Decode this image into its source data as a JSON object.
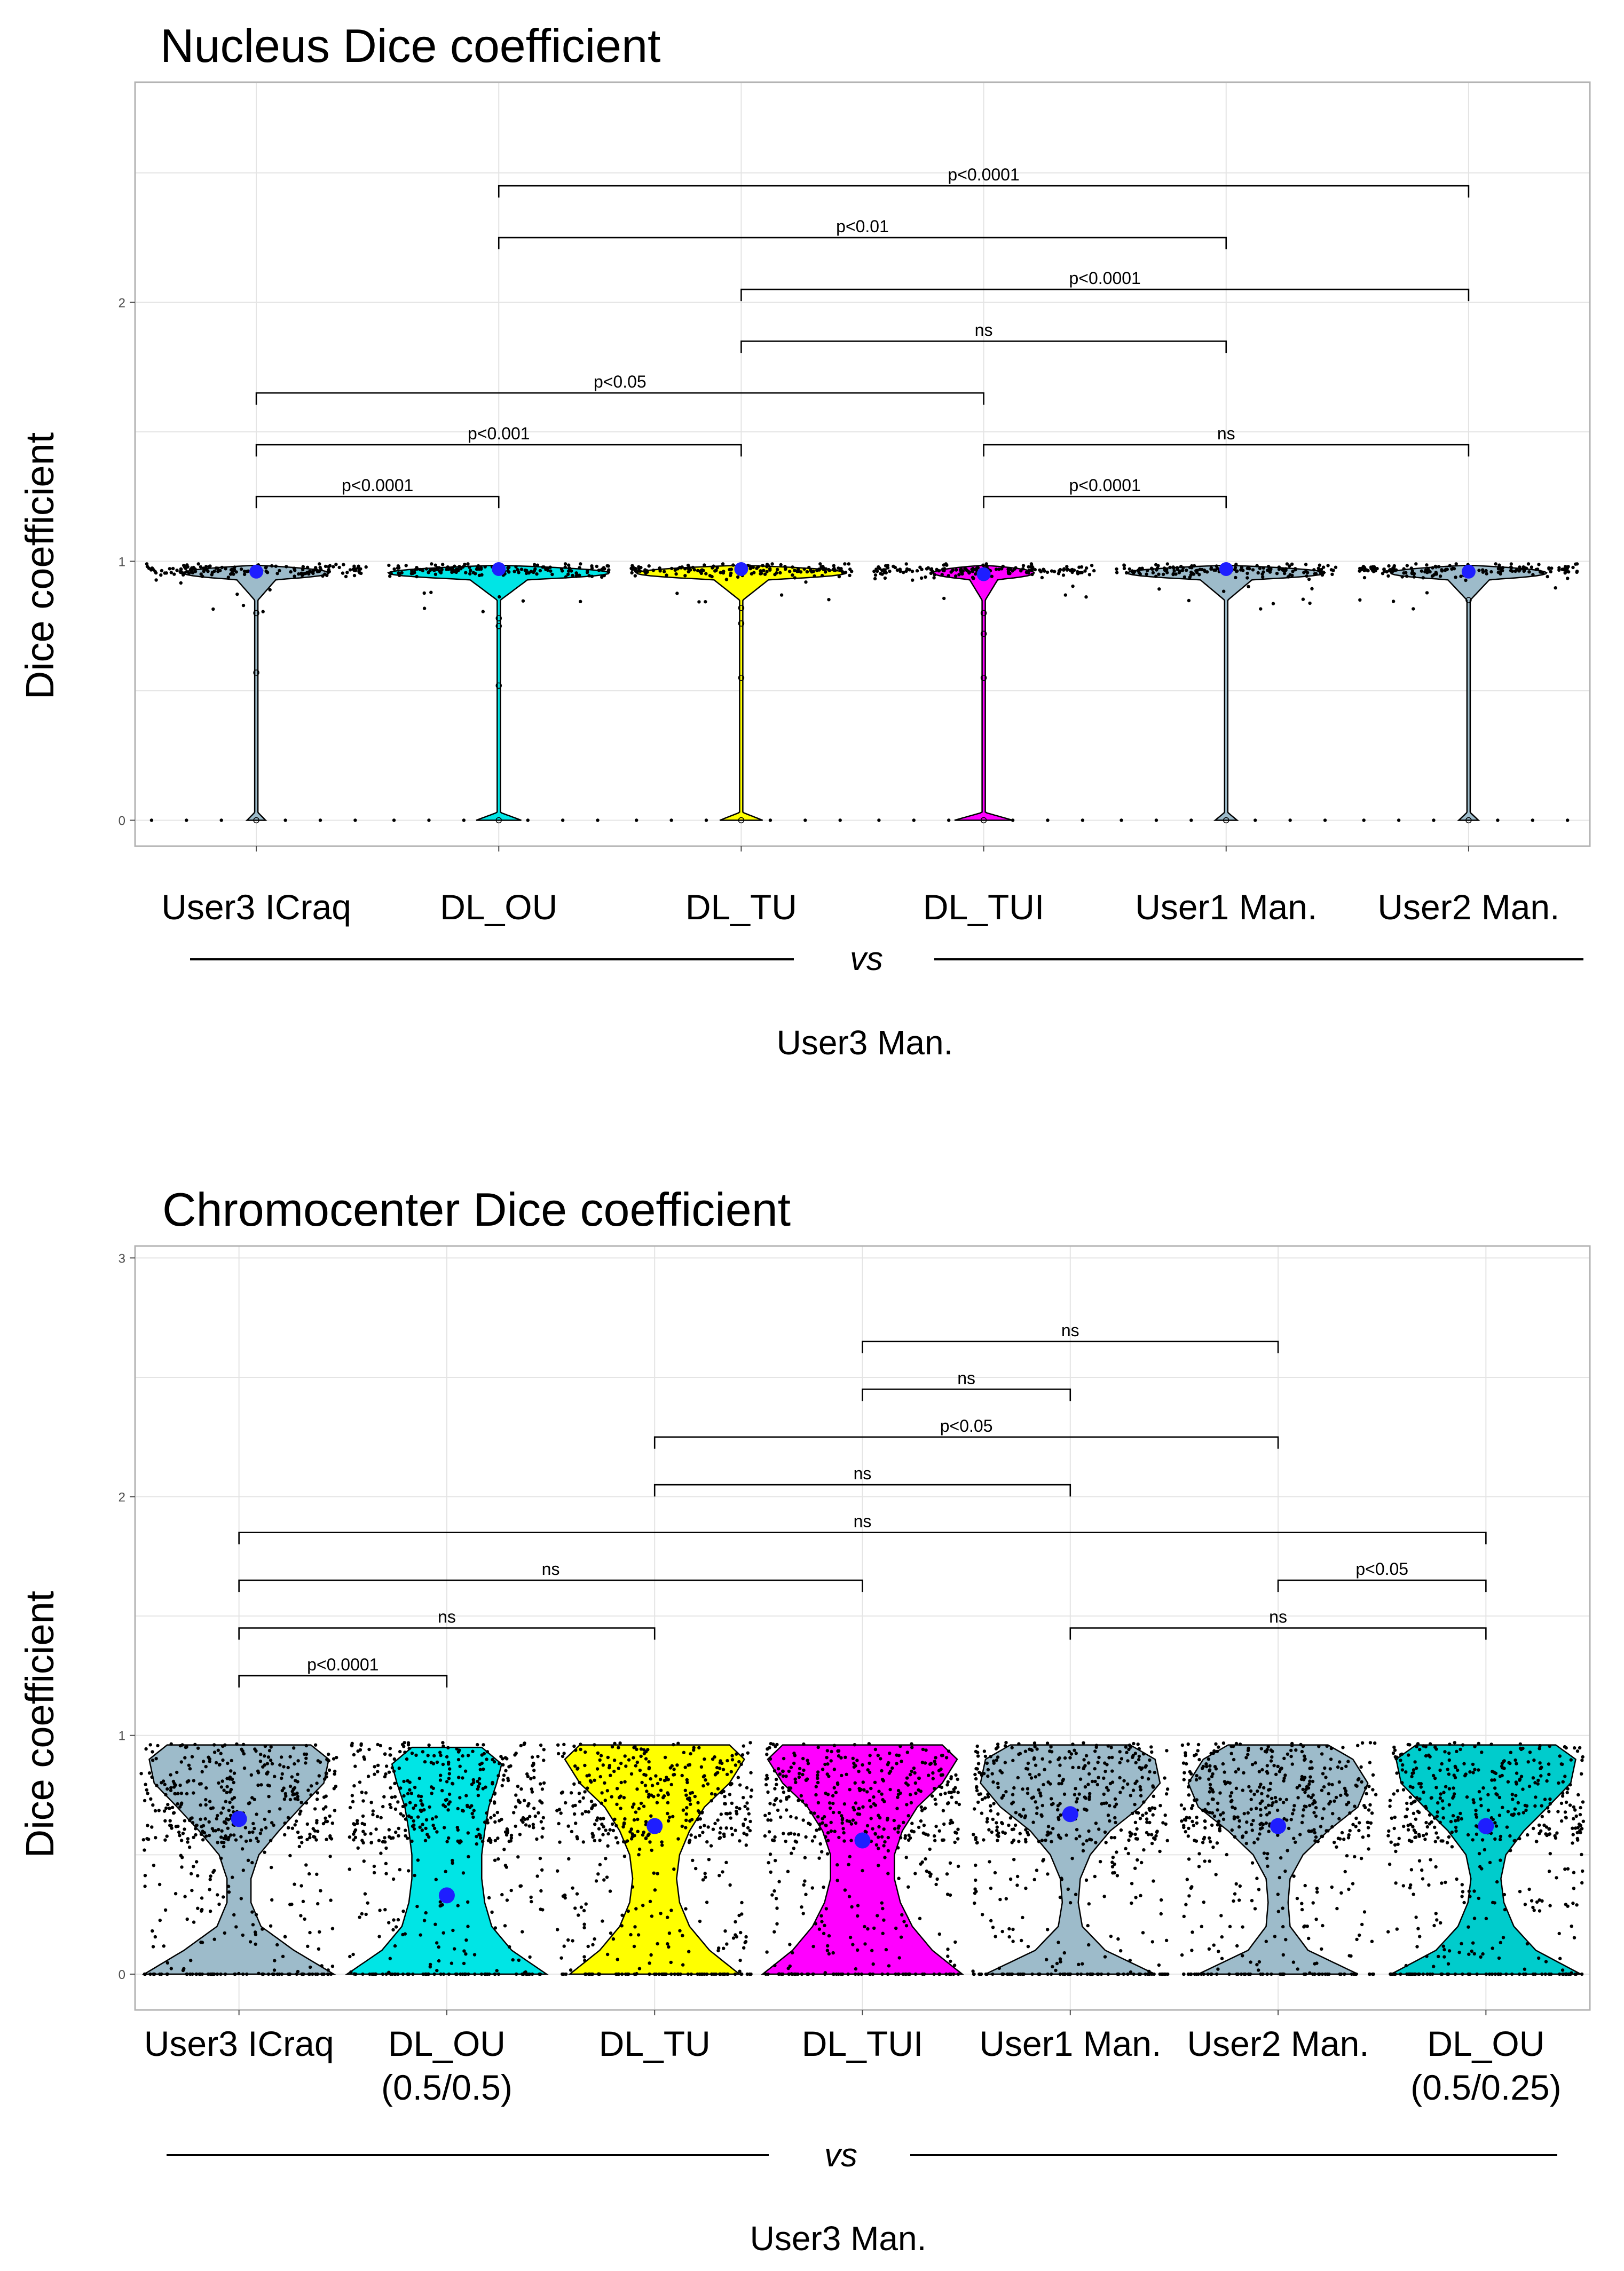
{
  "figure": {
    "reference_label": "User3 Man.",
    "vs_label": "vs"
  },
  "chart_data": [
    {
      "type": "violin",
      "title": "Nucleus Dice coefficient",
      "ylabel": "Dice coefficient",
      "xlabel": "",
      "ylim": [
        -0.1,
        2.85
      ],
      "yticks": [
        0,
        1,
        2
      ],
      "grid": true,
      "categories": [
        {
          "label": "User3 ICraq",
          "color": "#9dbbca",
          "median": 0.96,
          "width_scale": 0.28,
          "core_width": 0.85,
          "low_tail": 0.015,
          "outliers": [
            0.8,
            0.57,
            0.0
          ]
        },
        {
          "label": "DL_OU",
          "color": "#00e5e5",
          "median": 0.97,
          "width_scale": 0.38,
          "core_width": 0.95,
          "low_tail": 0.03,
          "outliers": [
            0.78,
            0.75,
            0.52,
            0.0
          ]
        },
        {
          "label": "DL_TU",
          "color": "#ffff00",
          "median": 0.97,
          "width_scale": 0.36,
          "core_width": 0.95,
          "low_tail": 0.03,
          "outliers": [
            0.82,
            0.76,
            0.55,
            0.0
          ]
        },
        {
          "label": "DL_TUI",
          "color": "#ff00ff",
          "median": 0.95,
          "width_scale": 0.3,
          "core_width": 0.55,
          "low_tail": 0.05,
          "outliers": [
            0.8,
            0.72,
            0.55,
            0.0
          ]
        },
        {
          "label": "User1 Man.",
          "color": "#9dbbca",
          "median": 0.97,
          "width_scale": 0.34,
          "core_width": 0.95,
          "low_tail": 0.015,
          "outliers": [
            0.0
          ]
        },
        {
          "label": "User2 Man.",
          "color": "#9dbbca",
          "median": 0.96,
          "width_scale": 0.3,
          "core_width": 0.85,
          "low_tail": 0.015,
          "outliers": [
            0.85,
            0.0
          ]
        }
      ],
      "comparisons": [
        {
          "from": 0,
          "to": 1,
          "y": 1.25,
          "label": "p<0.0001"
        },
        {
          "from": 0,
          "to": 2,
          "y": 1.45,
          "label": "p<0.001"
        },
        {
          "from": 3,
          "to": 4,
          "y": 1.25,
          "label": "p<0.0001"
        },
        {
          "from": 3,
          "to": 5,
          "y": 1.45,
          "label": "ns"
        },
        {
          "from": 0,
          "to": 3,
          "y": 1.65,
          "label": "p<0.05"
        },
        {
          "from": 2,
          "to": 4,
          "y": 1.85,
          "label": "ns"
        },
        {
          "from": 2,
          "to": 5,
          "y": 2.05,
          "label": "p<0.0001"
        },
        {
          "from": 1,
          "to": 4,
          "y": 2.25,
          "label": "p<0.01"
        },
        {
          "from": 1,
          "to": 5,
          "y": 2.45,
          "label": "p<0.0001"
        }
      ]
    },
    {
      "type": "violin",
      "title": "Chromocenter Dice coefficient",
      "ylabel": "Dice coefficient",
      "xlabel": "",
      "ylim": [
        -0.15,
        3.05
      ],
      "yticks": [
        0,
        1,
        2,
        3
      ],
      "grid": true,
      "categories": [
        {
          "label": "User3 ICraq",
          "sublabel": "",
          "color": "#9dbbca",
          "median": 0.65,
          "profile": [
            [
              0,
              0.95
            ],
            [
              0.1,
              0.55
            ],
            [
              0.2,
              0.22
            ],
            [
              0.3,
              0.12
            ],
            [
              0.4,
              0.12
            ],
            [
              0.5,
              0.2
            ],
            [
              0.6,
              0.4
            ],
            [
              0.7,
              0.62
            ],
            [
              0.8,
              0.85
            ],
            [
              0.9,
              0.9
            ],
            [
              0.96,
              0.72
            ]
          ]
        },
        {
          "label": "DL_OU",
          "sublabel": "(0.5/0.5)",
          "color": "#00e5e5",
          "median": 0.33,
          "profile": [
            [
              0,
              1.0
            ],
            [
              0.1,
              0.65
            ],
            [
              0.2,
              0.45
            ],
            [
              0.3,
              0.38
            ],
            [
              0.4,
              0.35
            ],
            [
              0.5,
              0.35
            ],
            [
              0.6,
              0.38
            ],
            [
              0.7,
              0.42
            ],
            [
              0.8,
              0.5
            ],
            [
              0.88,
              0.55
            ],
            [
              0.95,
              0.35
            ]
          ]
        },
        {
          "label": "DL_TU",
          "sublabel": "",
          "color": "#ffff00",
          "median": 0.62,
          "profile": [
            [
              0,
              0.85
            ],
            [
              0.1,
              0.55
            ],
            [
              0.2,
              0.35
            ],
            [
              0.3,
              0.25
            ],
            [
              0.4,
              0.22
            ],
            [
              0.5,
              0.25
            ],
            [
              0.6,
              0.35
            ],
            [
              0.7,
              0.5
            ],
            [
              0.8,
              0.75
            ],
            [
              0.9,
              0.9
            ],
            [
              0.96,
              0.75
            ]
          ]
        },
        {
          "label": "DL_TUI",
          "sublabel": "",
          "color": "#ff00ff",
          "median": 0.56,
          "profile": [
            [
              0,
              1.0
            ],
            [
              0.1,
              0.7
            ],
            [
              0.2,
              0.5
            ],
            [
              0.3,
              0.38
            ],
            [
              0.4,
              0.32
            ],
            [
              0.5,
              0.32
            ],
            [
              0.6,
              0.4
            ],
            [
              0.7,
              0.55
            ],
            [
              0.8,
              0.8
            ],
            [
              0.9,
              0.95
            ],
            [
              0.96,
              0.8
            ]
          ]
        },
        {
          "label": "User1 Man.",
          "sublabel": "",
          "color": "#9dbbca",
          "median": 0.67,
          "profile": [
            [
              0,
              0.85
            ],
            [
              0.1,
              0.35
            ],
            [
              0.2,
              0.12
            ],
            [
              0.3,
              0.08
            ],
            [
              0.4,
              0.1
            ],
            [
              0.5,
              0.2
            ],
            [
              0.6,
              0.4
            ],
            [
              0.7,
              0.7
            ],
            [
              0.8,
              0.9
            ],
            [
              0.9,
              0.85
            ],
            [
              0.96,
              0.6
            ]
          ]
        },
        {
          "label": "User2 Man.",
          "sublabel": "",
          "color": "#9dbbca",
          "median": 0.62,
          "profile": [
            [
              0,
              0.8
            ],
            [
              0.1,
              0.3
            ],
            [
              0.2,
              0.12
            ],
            [
              0.3,
              0.1
            ],
            [
              0.4,
              0.12
            ],
            [
              0.5,
              0.25
            ],
            [
              0.6,
              0.5
            ],
            [
              0.7,
              0.8
            ],
            [
              0.8,
              0.9
            ],
            [
              0.9,
              0.75
            ],
            [
              0.96,
              0.5
            ]
          ]
        },
        {
          "label": "DL_OU",
          "sublabel": "(0.5/0.25)",
          "color": "#00cccc",
          "median": 0.62,
          "profile": [
            [
              0,
              0.95
            ],
            [
              0.1,
              0.5
            ],
            [
              0.2,
              0.28
            ],
            [
              0.3,
              0.18
            ],
            [
              0.4,
              0.15
            ],
            [
              0.5,
              0.2
            ],
            [
              0.6,
              0.38
            ],
            [
              0.7,
              0.62
            ],
            [
              0.8,
              0.85
            ],
            [
              0.9,
              0.9
            ],
            [
              0.96,
              0.7
            ]
          ]
        }
      ],
      "comparisons": [
        {
          "from": 0,
          "to": 1,
          "y": 1.25,
          "label": "p<0.0001"
        },
        {
          "from": 0,
          "to": 2,
          "y": 1.45,
          "label": "ns"
        },
        {
          "from": 4,
          "to": 6,
          "y": 1.45,
          "label": "ns"
        },
        {
          "from": 0,
          "to": 3,
          "y": 1.65,
          "label": "ns"
        },
        {
          "from": 5,
          "to": 6,
          "y": 1.65,
          "label": "p<0.05"
        },
        {
          "from": 0,
          "to": 6,
          "y": 1.85,
          "label": "ns"
        },
        {
          "from": 2,
          "to": 4,
          "y": 2.05,
          "label": "ns"
        },
        {
          "from": 2,
          "to": 5,
          "y": 2.25,
          "label": "p<0.05"
        },
        {
          "from": 3,
          "to": 4,
          "y": 2.45,
          "label": "ns"
        },
        {
          "from": 3,
          "to": 5,
          "y": 2.65,
          "label": "ns"
        }
      ]
    }
  ]
}
